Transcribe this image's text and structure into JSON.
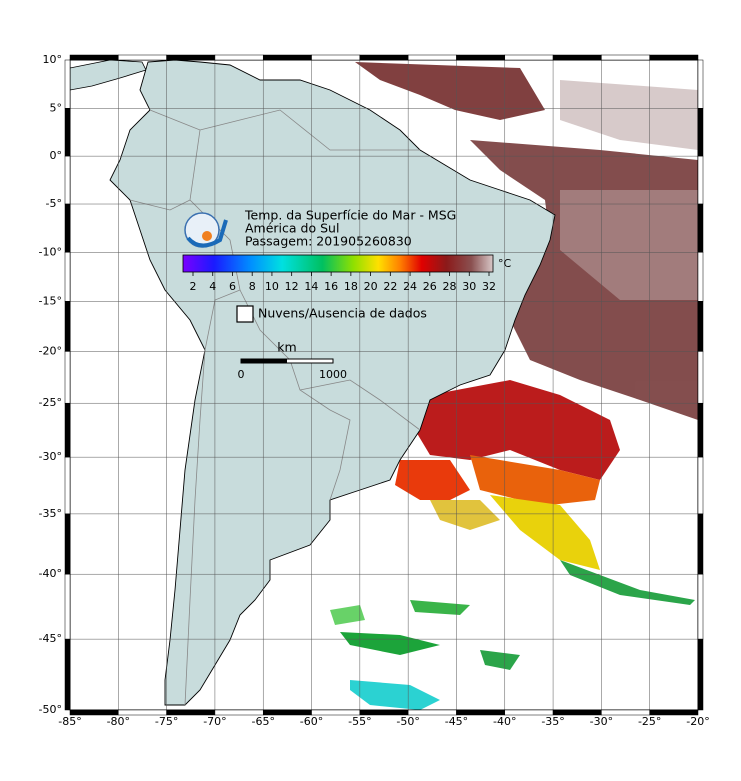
{
  "map": {
    "title_lines": [
      "Temp. da Superfície do Mar - MSG",
      "América do Sul",
      "Passagem: 201905260830"
    ],
    "lon_ticks": [
      {
        "value": -85,
        "label": "-85°"
      },
      {
        "value": -80,
        "label": "-80°"
      },
      {
        "value": -75,
        "label": "-75°"
      },
      {
        "value": -70,
        "label": "-70°"
      },
      {
        "value": -65,
        "label": "-65°"
      },
      {
        "value": -60,
        "label": "-60°"
      },
      {
        "value": -55,
        "label": "-55°"
      },
      {
        "value": -50,
        "label": "-50°"
      },
      {
        "value": -45,
        "label": "-45°"
      },
      {
        "value": -40,
        "label": "-40°"
      },
      {
        "value": -35,
        "label": "-35°"
      },
      {
        "value": -30,
        "label": "-30°"
      },
      {
        "value": -25,
        "label": "-25°"
      },
      {
        "value": -20,
        "label": "-20°"
      }
    ],
    "lat_ticks": [
      {
        "value": 10,
        "label": "10°"
      },
      {
        "value": 5,
        "label": "5°"
      },
      {
        "value": 0,
        "label": "0°"
      },
      {
        "value": -5,
        "label": "-5°"
      },
      {
        "value": -10,
        "label": "-10°"
      },
      {
        "value": -15,
        "label": "-15°"
      },
      {
        "value": -20,
        "label": "-20°"
      },
      {
        "value": -25,
        "label": "-25°"
      },
      {
        "value": -30,
        "label": "-30°"
      },
      {
        "value": -35,
        "label": "-35°"
      },
      {
        "value": -40,
        "label": "-40°"
      },
      {
        "value": -45,
        "label": "-45°"
      },
      {
        "value": -50,
        "label": "-50°"
      }
    ],
    "colorbar": {
      "ticks": [
        2,
        4,
        6,
        8,
        10,
        12,
        14,
        16,
        18,
        20,
        22,
        24,
        26,
        28,
        30,
        32
      ],
      "unit": "°C"
    },
    "legend": "Nuvens/Ausencia de dados",
    "scale": {
      "unit": "km",
      "start": "0",
      "end": "1000"
    }
  }
}
